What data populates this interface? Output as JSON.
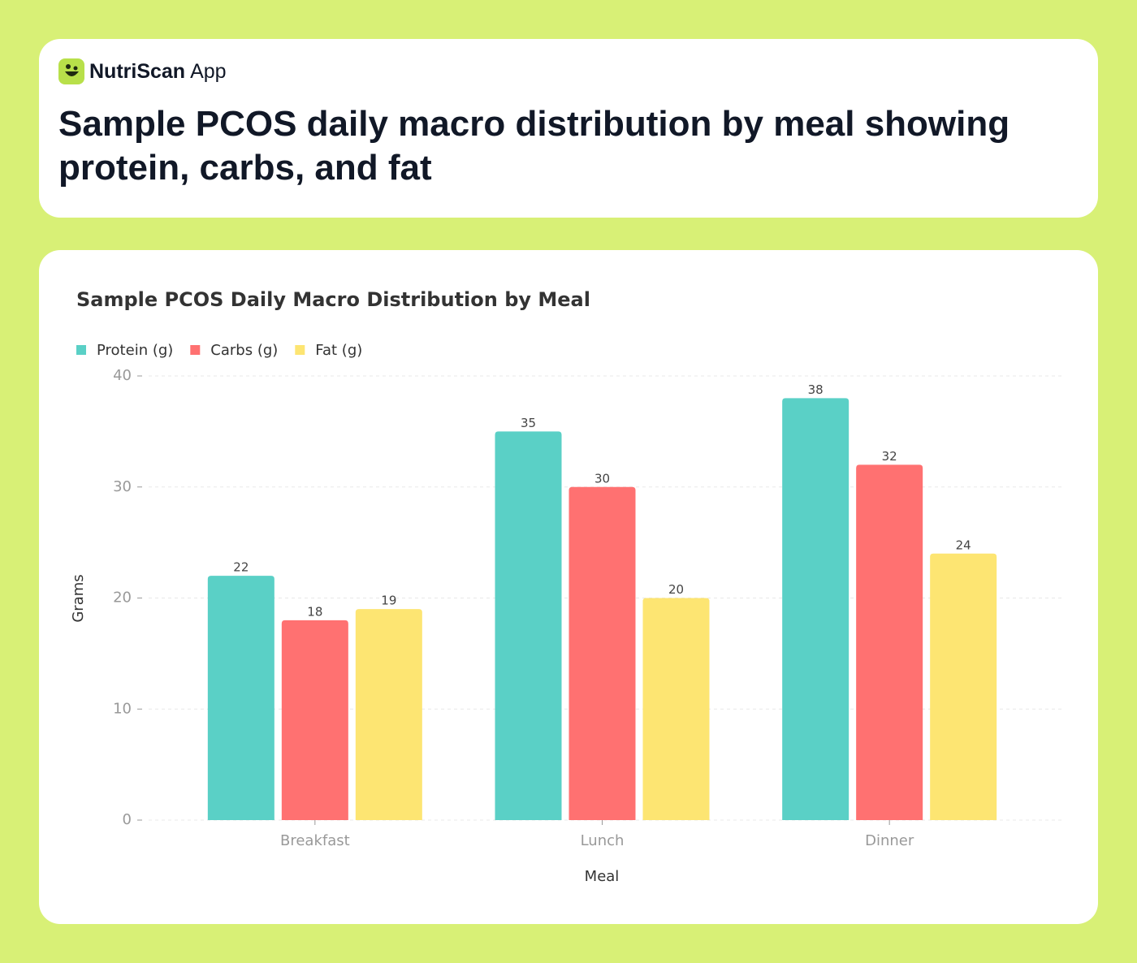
{
  "header": {
    "brand": "NutriScan",
    "brand_suffix": "App",
    "title": "Sample PCOS daily macro distribution by meal showing protein, carbs, and fat"
  },
  "chart_data": {
    "type": "bar",
    "title": "Sample PCOS Daily Macro Distribution by Meal",
    "x_label": "Meal",
    "y_label": "Grams",
    "categories": [
      "Breakfast",
      "Lunch",
      "Dinner"
    ],
    "series": [
      {
        "name": "Protein (g)",
        "color": "#5ad0c6",
        "values": [
          22,
          35,
          38
        ]
      },
      {
        "name": "Carbs (g)",
        "color": "#ff7171",
        "values": [
          18,
          30,
          32
        ]
      },
      {
        "name": "Fat (g)",
        "color": "#fde572",
        "values": [
          19,
          20,
          24
        ]
      }
    ],
    "ylim": [
      0,
      40
    ],
    "yticks": [
      0,
      10,
      20,
      30,
      40
    ],
    "grid": true,
    "legend": "top-left"
  }
}
